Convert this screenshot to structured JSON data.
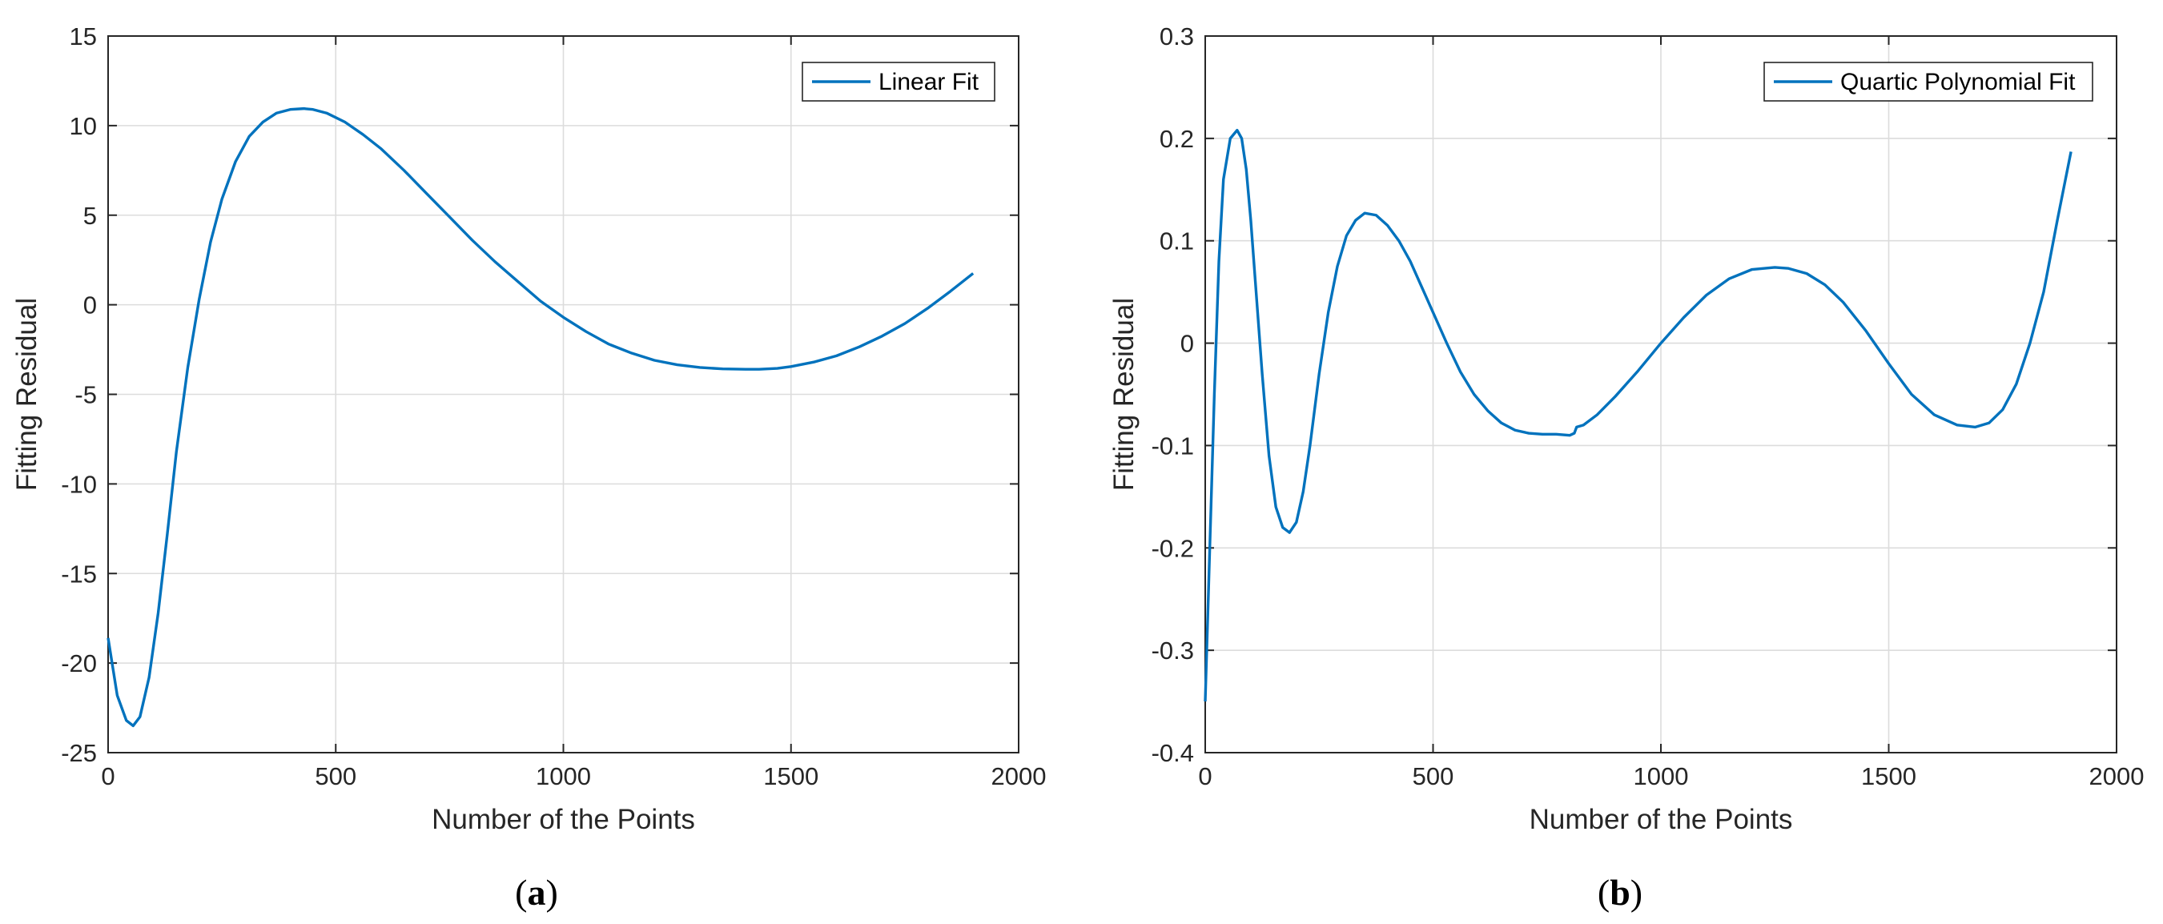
{
  "chart_data": [
    {
      "type": "line",
      "panel": {
        "open": "(",
        "letter": "a",
        "close": ")"
      },
      "xlabel": "Number of the Points",
      "ylabel": "Fitting Residual",
      "xlim": [
        0,
        2000
      ],
      "ylim": [
        -25,
        15
      ],
      "xticks": [
        0,
        500,
        1000,
        1500,
        2000
      ],
      "xtick_labels": [
        "0",
        "500",
        "1000",
        "1500",
        "2000"
      ],
      "yticks": [
        15,
        10,
        5,
        0,
        -5,
        -10,
        -15,
        -20,
        -25
      ],
      "ytick_labels": [
        "15",
        "10",
        "5",
        "0",
        "-5",
        "-10",
        "-15",
        "-20",
        "-25"
      ],
      "grid": true,
      "legend_position": "top-right",
      "series": [
        {
          "name": "Linear Fit",
          "color": "#0072BD",
          "x": [
            0,
            20,
            40,
            55,
            70,
            90,
            110,
            130,
            150,
            175,
            200,
            225,
            250,
            280,
            310,
            340,
            370,
            400,
            430,
            450,
            480,
            520,
            560,
            600,
            650,
            700,
            750,
            800,
            850,
            900,
            950,
            1000,
            1050,
            1100,
            1150,
            1200,
            1250,
            1300,
            1350,
            1400,
            1430,
            1470,
            1500,
            1550,
            1600,
            1650,
            1700,
            1750,
            1800,
            1850,
            1900
          ],
          "y": [
            -18.6,
            -21.8,
            -23.2,
            -23.5,
            -23.0,
            -20.8,
            -17.2,
            -12.8,
            -8.2,
            -3.5,
            0.3,
            3.5,
            5.9,
            8.0,
            9.4,
            10.2,
            10.7,
            10.9,
            10.95,
            10.9,
            10.7,
            10.2,
            9.5,
            8.7,
            7.5,
            6.2,
            4.9,
            3.6,
            2.4,
            1.3,
            0.2,
            -0.7,
            -1.5,
            -2.2,
            -2.7,
            -3.1,
            -3.35,
            -3.5,
            -3.58,
            -3.6,
            -3.6,
            -3.55,
            -3.45,
            -3.2,
            -2.85,
            -2.35,
            -1.75,
            -1.05,
            -0.2,
            0.75,
            1.75
          ]
        }
      ]
    },
    {
      "type": "line",
      "panel": {
        "open": "(",
        "letter": "b",
        "close": ")"
      },
      "xlabel": "Number of the Points",
      "ylabel": "Fitting Residual",
      "xlim": [
        0,
        2000
      ],
      "ylim": [
        -0.4,
        0.3
      ],
      "xticks": [
        0,
        500,
        1000,
        1500,
        2000
      ],
      "xtick_labels": [
        "0",
        "500",
        "1000",
        "1500",
        "2000"
      ],
      "yticks": [
        0.3,
        0.2,
        0.1,
        0,
        -0.1,
        -0.2,
        -0.3,
        -0.4
      ],
      "ytick_labels": [
        "0.3",
        "0.2",
        "0.1",
        "0",
        "-0.1",
        "-0.2",
        "-0.3",
        "-0.4"
      ],
      "grid": true,
      "legend_position": "top-right",
      "series": [
        {
          "name": "Quartic Polynomial Fit",
          "color": "#0072BD",
          "x": [
            0,
            10,
            20,
            30,
            40,
            55,
            70,
            80,
            90,
            100,
            110,
            125,
            140,
            155,
            170,
            185,
            200,
            215,
            230,
            250,
            270,
            290,
            310,
            330,
            350,
            375,
            400,
            425,
            450,
            475,
            500,
            530,
            560,
            590,
            620,
            650,
            680,
            710,
            740,
            770,
            800,
            810,
            815,
            830,
            860,
            900,
            950,
            1000,
            1050,
            1100,
            1150,
            1200,
            1250,
            1280,
            1320,
            1360,
            1400,
            1450,
            1500,
            1550,
            1600,
            1650,
            1690,
            1720,
            1750,
            1780,
            1810,
            1840,
            1870,
            1900
          ],
          "y": [
            -0.35,
            -0.2,
            -0.05,
            0.08,
            0.16,
            0.2,
            0.208,
            0.2,
            0.17,
            0.12,
            0.06,
            -0.03,
            -0.11,
            -0.16,
            -0.18,
            -0.185,
            -0.175,
            -0.145,
            -0.1,
            -0.03,
            0.03,
            0.075,
            0.105,
            0.12,
            0.127,
            0.125,
            0.115,
            0.1,
            0.08,
            0.055,
            0.03,
            0.0,
            -0.028,
            -0.05,
            -0.066,
            -0.078,
            -0.085,
            -0.088,
            -0.089,
            -0.089,
            -0.09,
            -0.088,
            -0.082,
            -0.08,
            -0.07,
            -0.052,
            -0.027,
            0.0,
            0.025,
            0.047,
            0.063,
            0.072,
            0.074,
            0.073,
            0.068,
            0.057,
            0.04,
            0.012,
            -0.02,
            -0.05,
            -0.07,
            -0.08,
            -0.082,
            -0.078,
            -0.065,
            -0.04,
            0.0,
            0.05,
            0.12,
            0.187
          ]
        }
      ]
    }
  ]
}
